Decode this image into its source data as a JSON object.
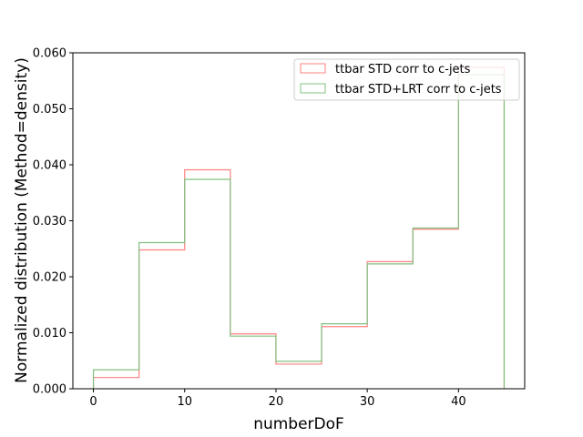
{
  "chart_data": {
    "type": "histogram-step",
    "xlabel": "numberDoF",
    "ylabel": "Normalized distribution (Method=density)",
    "xlim": [
      -2.25,
      47.25
    ],
    "ylim": [
      0,
      0.06
    ],
    "xticks": [
      0,
      10,
      20,
      30,
      40
    ],
    "xtick_labels": [
      "0",
      "10",
      "20",
      "30",
      "40"
    ],
    "yticks": [
      0,
      0.01,
      0.02,
      0.03,
      0.04,
      0.05,
      0.06
    ],
    "ytick_labels": [
      "0.000",
      "0.010",
      "0.020",
      "0.030",
      "0.040",
      "0.050",
      "0.060"
    ],
    "bin_edges": [
      0,
      5,
      10,
      15,
      20,
      25,
      30,
      35,
      40,
      45
    ],
    "legend_position": "top-right",
    "grid": false,
    "series": [
      {
        "name": "ttbar STD corr to c-jets",
        "color": "#ff8080",
        "values": [
          0.002,
          0.0248,
          0.0391,
          0.0098,
          0.0044,
          0.0111,
          0.0227,
          0.0285,
          0.0574
        ]
      },
      {
        "name": "ttbar STD+LRT corr to c-jets",
        "color": "#80c080",
        "values": [
          0.0034,
          0.0261,
          0.0374,
          0.0094,
          0.0049,
          0.0116,
          0.0223,
          0.0287,
          0.0561
        ]
      }
    ]
  }
}
